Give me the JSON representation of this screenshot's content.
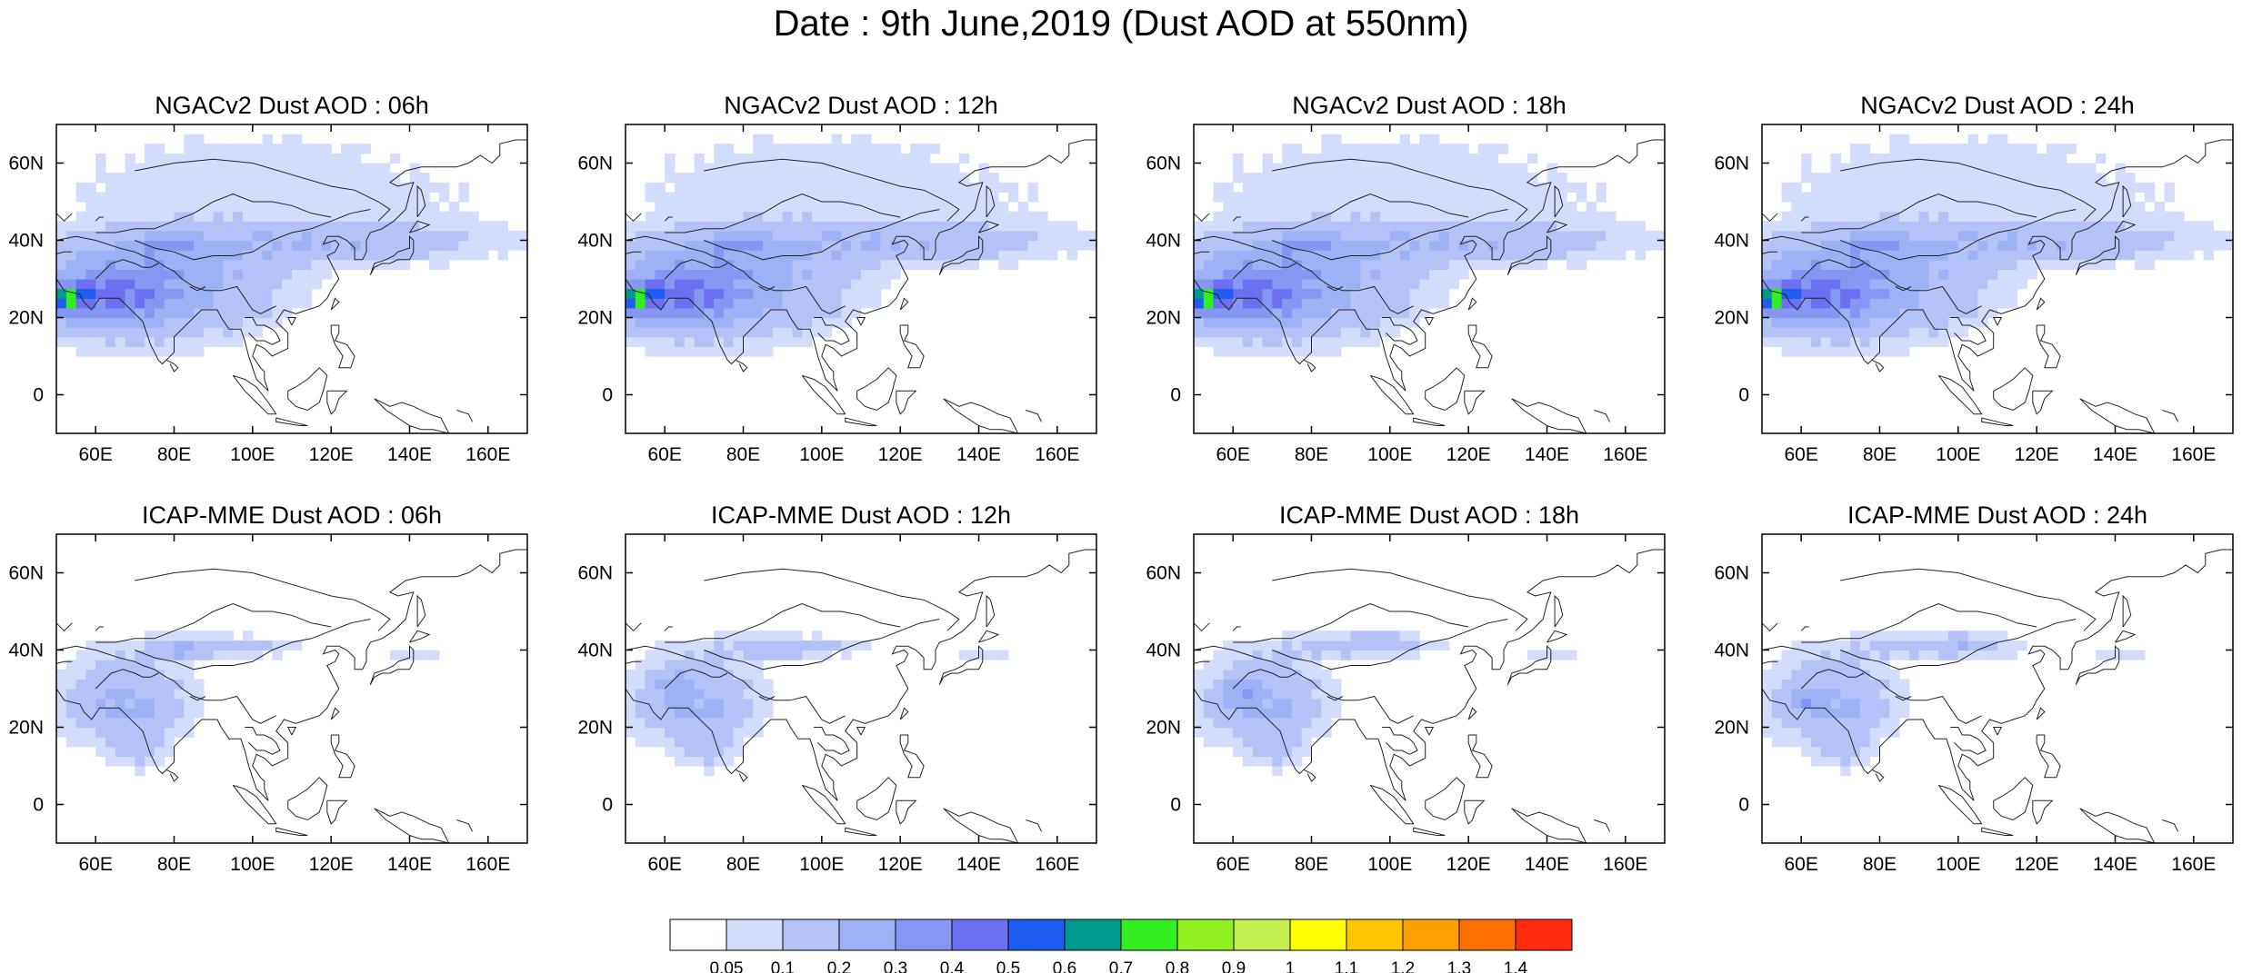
{
  "title": "Date : 9th June,2019 (Dust AOD at 550nm)",
  "map": {
    "lon_range": [
      50,
      170
    ],
    "lat_range": [
      -10,
      70
    ],
    "lon_ticks": [
      "60E",
      "80E",
      "100E",
      "120E",
      "140E",
      "160E"
    ],
    "lat_ticks": [
      "0",
      "20N",
      "40N",
      "60N"
    ]
  },
  "panels": [
    {
      "title": "NGACv2 Dust AOD : 06h",
      "model": "NGACv2",
      "hour": "06h"
    },
    {
      "title": "NGACv2 Dust AOD : 12h",
      "model": "NGACv2",
      "hour": "12h"
    },
    {
      "title": "NGACv2 Dust AOD : 18h",
      "model": "NGACv2",
      "hour": "18h"
    },
    {
      "title": "NGACv2 Dust AOD : 24h",
      "model": "NGACv2",
      "hour": "24h"
    },
    {
      "title": "ICAP-MME Dust AOD : 06h",
      "model": "ICAP-MME",
      "hour": "06h"
    },
    {
      "title": "ICAP-MME Dust AOD : 12h",
      "model": "ICAP-MME",
      "hour": "12h"
    },
    {
      "title": "ICAP-MME Dust AOD : 18h",
      "model": "ICAP-MME",
      "hour": "18h"
    },
    {
      "title": "ICAP-MME Dust AOD : 24h",
      "model": "ICAP-MME",
      "hour": "24h"
    }
  ],
  "colorbar": {
    "labels": [
      "0.05",
      "0.1",
      "0.2",
      "0.3",
      "0.4",
      "0.5",
      "0.6",
      "0.7",
      "0.8",
      "0.9",
      "1",
      "1.1",
      "1.2",
      "1.3",
      "1.4"
    ],
    "colors": [
      "#ffffff",
      "#d4dcfb",
      "#b5c2f8",
      "#9db2f6",
      "#8597f3",
      "#6b6ff0",
      "#1f5cf0",
      "#009990",
      "#33ee20",
      "#90f020",
      "#c4f050",
      "#ffff00",
      "#ffc400",
      "#ffa000",
      "#ff7000",
      "#ff2a10"
    ]
  }
}
